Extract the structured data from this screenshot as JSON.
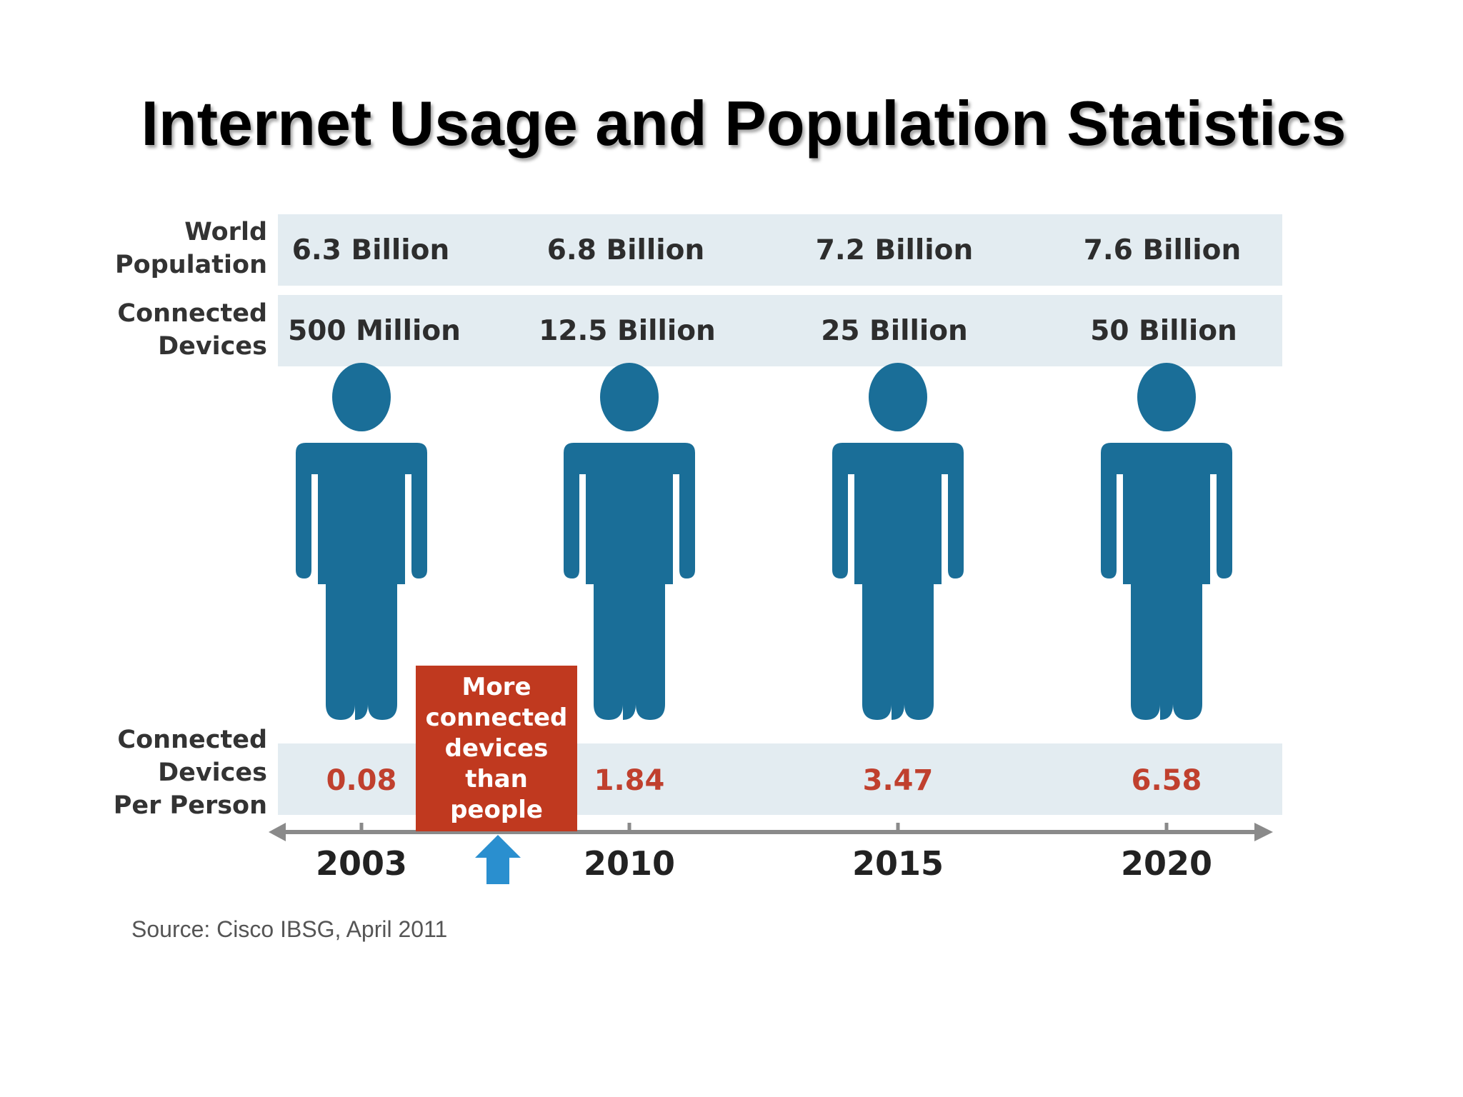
{
  "title": "Internet Usage and Population Statistics",
  "row_labels": {
    "population": "World\nPopulation",
    "devices": "Connected\nDevices",
    "per_person": "Connected\nDevices\nPer Person"
  },
  "callout": "More connected devices than people",
  "source": "Source: Cisco IBSG, April 2011",
  "colors": {
    "figure": "#1a6e98",
    "band": "#e3ecf1",
    "callout": "#c0391f",
    "ratio_text": "#c0402e",
    "axis": "#8a8a8a",
    "arrow": "#2a8fcf"
  },
  "chart_data": {
    "type": "table",
    "years": [
      "2003",
      "2010",
      "2015",
      "2020"
    ],
    "world_population": [
      "6.3 Billion",
      "6.8 Billion",
      "7.2 Billion",
      "7.6 Billion"
    ],
    "connected_devices": [
      "500 Million",
      "12.5 Billion",
      "25 Billion",
      "50 Billion"
    ],
    "devices_per_person": [
      "0.08",
      "1.84",
      "3.47",
      "6.58"
    ],
    "callout_position": "between 2003 and 2010"
  }
}
